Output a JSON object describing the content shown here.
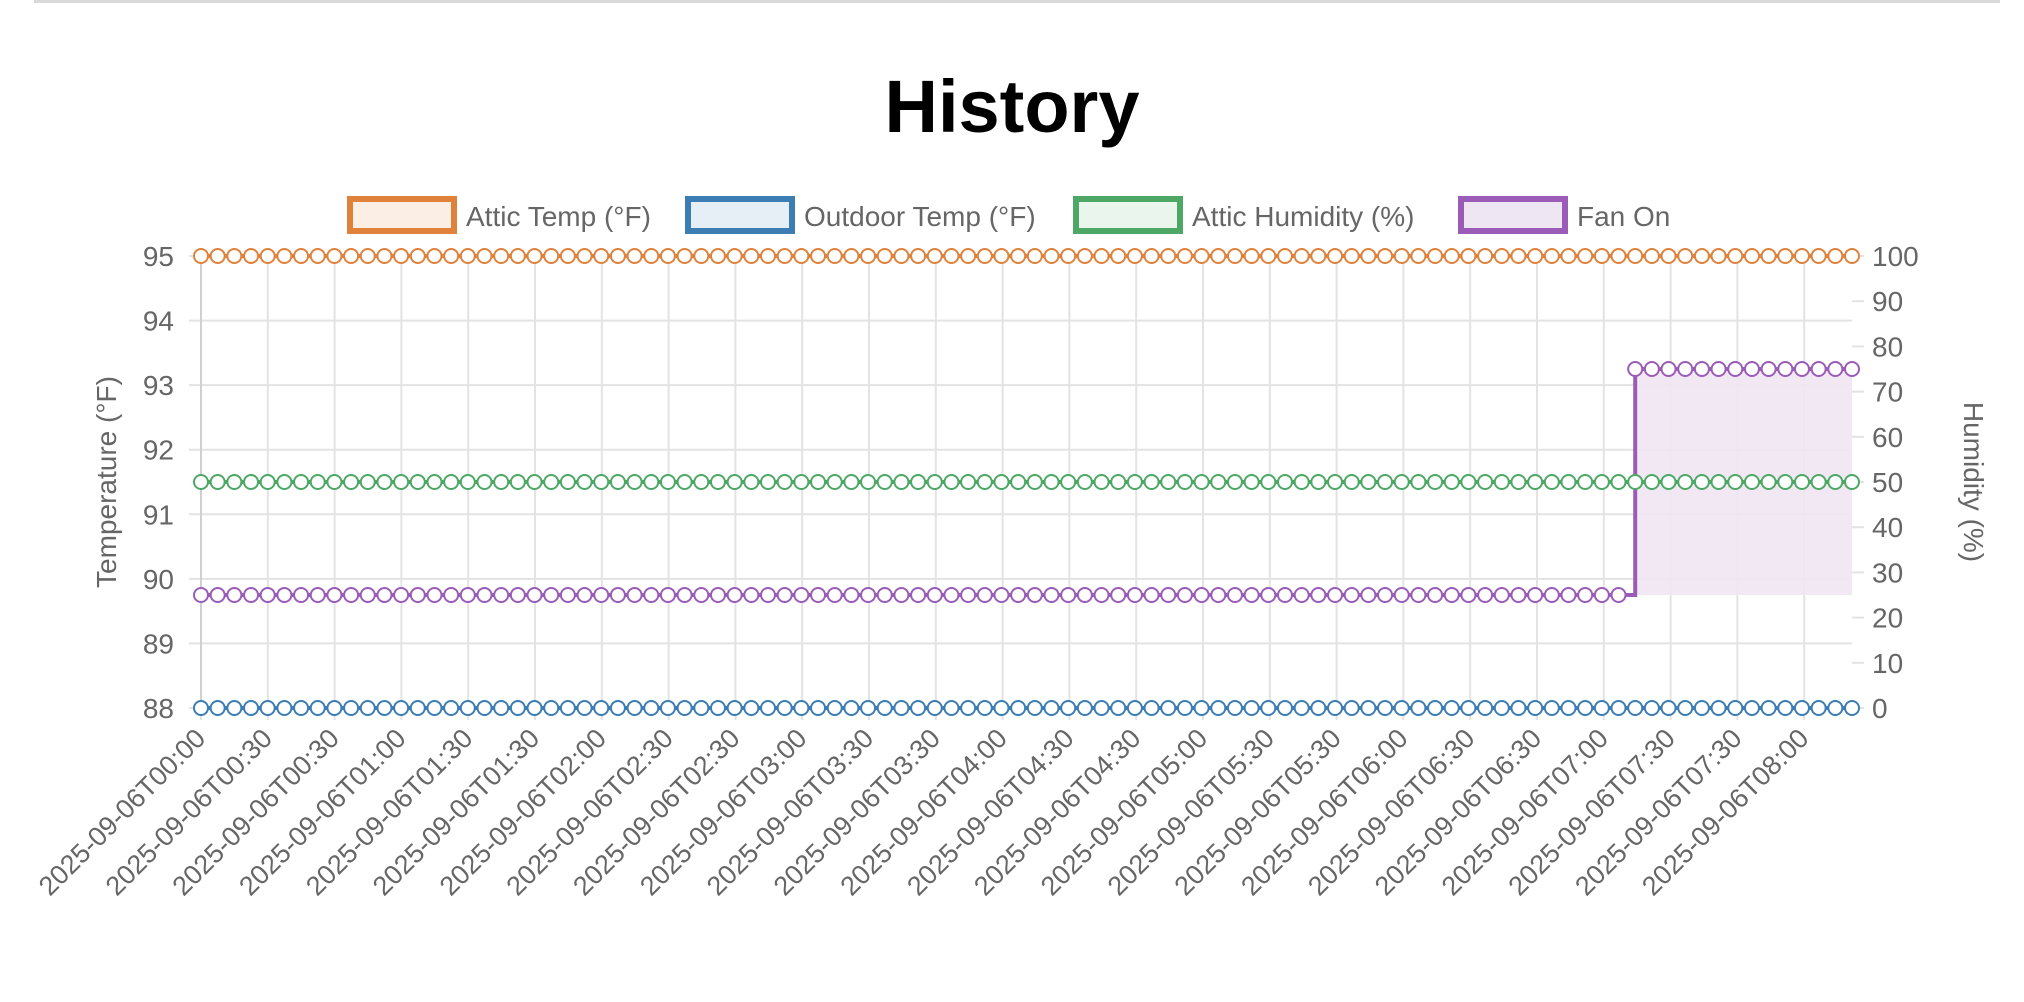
{
  "page": {
    "title": "History"
  },
  "chart_data": {
    "type": "line",
    "title": "History",
    "x": [
      "2025-09-06T00:00",
      "2025-09-06T00:30",
      "2025-09-06T00:30",
      "2025-09-06T01:00",
      "2025-09-06T01:30",
      "2025-09-06T01:30",
      "2025-09-06T02:00",
      "2025-09-06T02:30",
      "2025-09-06T02:30",
      "2025-09-06T03:00",
      "2025-09-06T03:30",
      "2025-09-06T03:30",
      "2025-09-06T04:00",
      "2025-09-06T04:30",
      "2025-09-06T04:30",
      "2025-09-06T05:00",
      "2025-09-06T05:30",
      "2025-09-06T05:30",
      "2025-09-06T06:00",
      "2025-09-06T06:30",
      "2025-09-06T06:30",
      "2025-09-06T07:00",
      "2025-09-06T07:30",
      "2025-09-06T07:30",
      "2025-09-06T08:00"
    ],
    "x_range": [
      "2025-09-06T00:00",
      "2025-09-06T08:15"
    ],
    "points_per_series": 100,
    "y_left": {
      "label": "Temperature (°F)",
      "range": [
        88,
        95
      ],
      "ticks": [
        88,
        89,
        90,
        91,
        92,
        93,
        94,
        95
      ]
    },
    "y_right": {
      "label": "Humidity (%)",
      "range": [
        0,
        100
      ],
      "ticks": [
        0,
        10,
        20,
        30,
        40,
        50,
        60,
        70,
        80,
        90,
        100
      ]
    },
    "grid": true,
    "legend_position": "top",
    "series": [
      {
        "name": "Attic Temp (°F)",
        "axis": "left",
        "color": "#e0823c",
        "fill": "#fbefe5",
        "constant": 95
      },
      {
        "name": "Outdoor Temp (°F)",
        "axis": "left",
        "color": "#3c7db4",
        "fill": "#e6eef6",
        "constant": 88
      },
      {
        "name": "Attic Humidity (%)",
        "axis": "right",
        "color": "#4ea865",
        "fill": "#eaf5ed",
        "constant": 50
      },
      {
        "name": "Fan On",
        "axis": "right",
        "color": "#9b5cb8",
        "fill": "#efe6f3",
        "low": 25,
        "high": 75,
        "switch_index": 86,
        "stepped": true,
        "area_fill": true
      }
    ]
  }
}
